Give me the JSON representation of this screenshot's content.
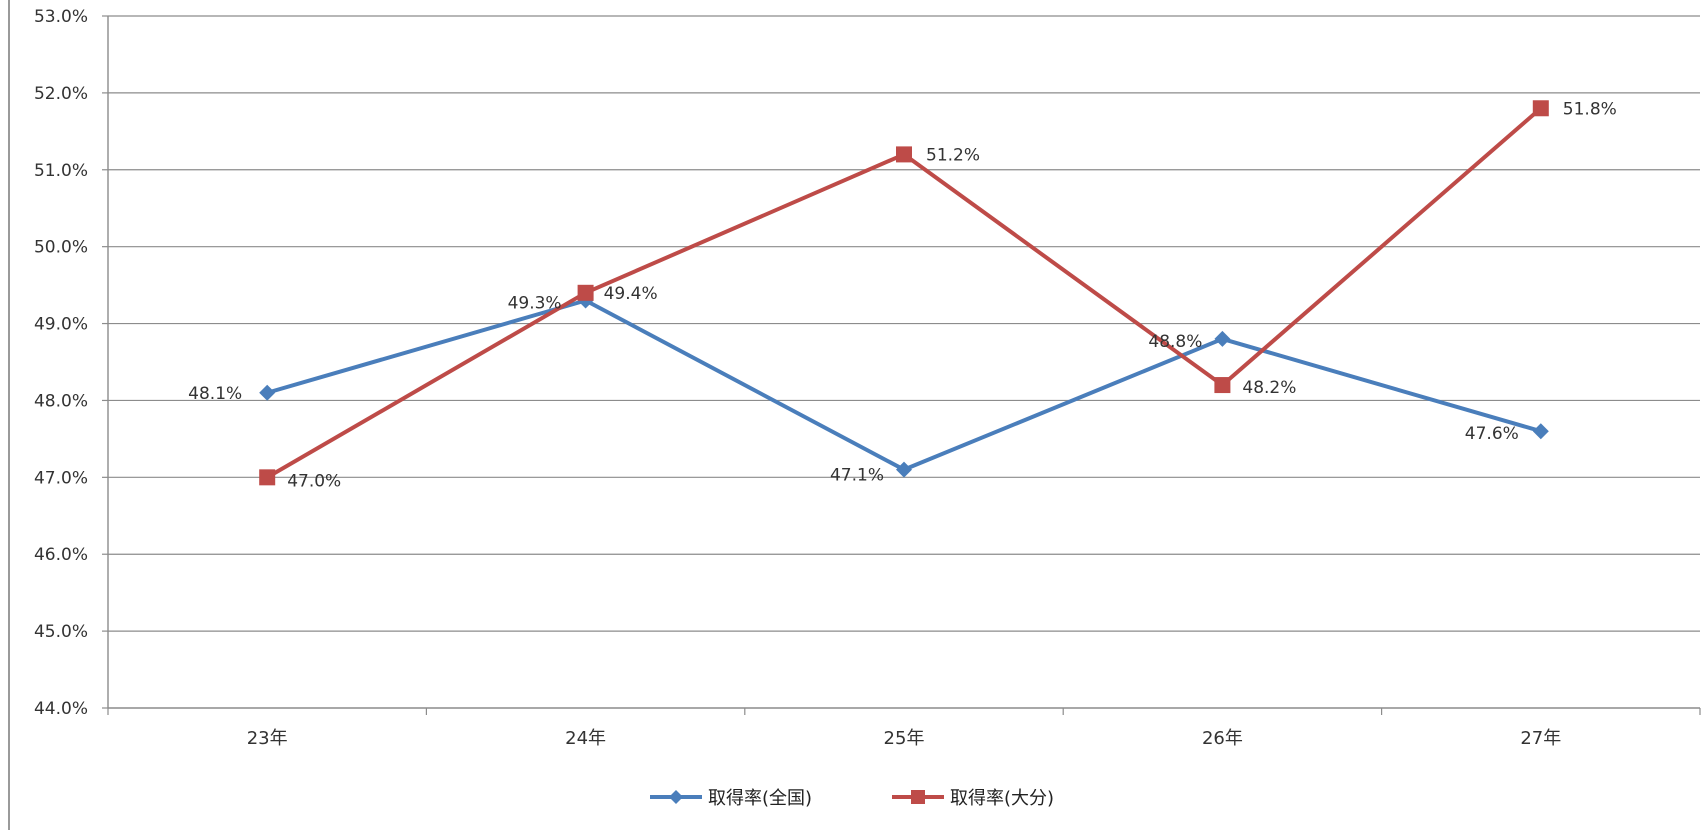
{
  "chart_data": {
    "type": "line",
    "title": "",
    "xlabel": "",
    "ylabel": "",
    "categories": [
      "23年",
      "24年",
      "25年",
      "26年",
      "27年"
    ],
    "ylim": [
      44.0,
      53.0
    ],
    "ytick_step": 1.0,
    "ytick_labels": [
      "44.0%",
      "45.0%",
      "46.0%",
      "47.0%",
      "48.0%",
      "49.0%",
      "50.0%",
      "51.0%",
      "52.0%",
      "53.0%"
    ],
    "grid": true,
    "legend_position": "bottom",
    "series": [
      {
        "name": "取得率(全国)",
        "values": [
          48.1,
          49.3,
          47.1,
          48.8,
          47.6
        ],
        "labels": [
          "48.1%",
          "49.3%",
          "47.1%",
          "48.8%",
          "47.6%"
        ],
        "color": "#4a7ebb",
        "marker": "diamond"
      },
      {
        "name": "取得率(大分)",
        "values": [
          47.0,
          49.4,
          51.2,
          48.2,
          51.8
        ],
        "labels": [
          "47.0%",
          "49.4%",
          "51.2%",
          "48.2%",
          "51.8%"
        ],
        "color": "#be4b48",
        "marker": "square"
      }
    ]
  }
}
